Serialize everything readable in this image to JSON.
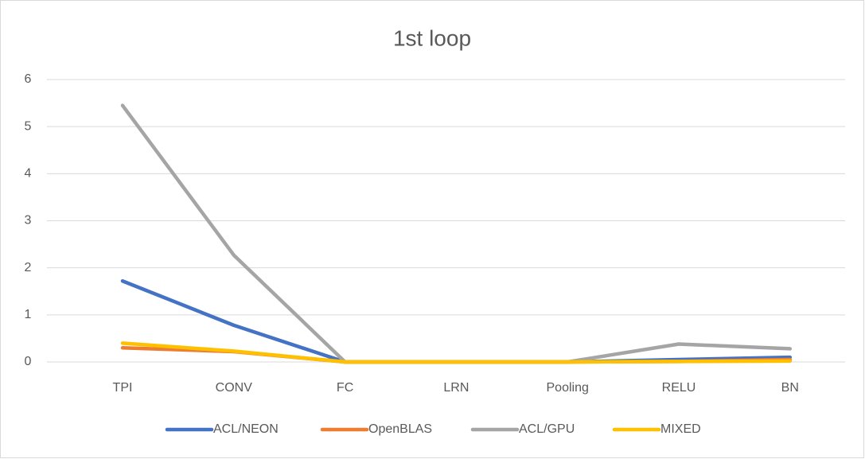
{
  "chart_data": {
    "type": "line",
    "title": "1st loop",
    "categories": [
      "TPI",
      "CONV",
      "FC",
      "LRN",
      "Pooling",
      "RELU",
      "BN"
    ],
    "series": [
      {
        "name": "ACL/NEON",
        "color": "#4472c4",
        "values": [
          1.72,
          0.78,
          0,
          0,
          0,
          0.05,
          0.1
        ]
      },
      {
        "name": "OpenBLAS",
        "color": "#ed7d31",
        "values": [
          0.3,
          0.22,
          0,
          0,
          0,
          0.01,
          0.05
        ]
      },
      {
        "name": "ACL/GPU",
        "color": "#a5a5a5",
        "values": [
          5.45,
          2.27,
          0,
          0,
          0,
          0.38,
          0.28
        ]
      },
      {
        "name": "MIXED",
        "color": "#ffc000",
        "values": [
          0.4,
          0.23,
          0,
          0,
          0,
          0.01,
          0.02
        ]
      }
    ],
    "ylim": [
      0,
      6
    ],
    "yticks": [
      0,
      1,
      2,
      3,
      4,
      5,
      6
    ],
    "grid": true,
    "legend": "bottom"
  }
}
